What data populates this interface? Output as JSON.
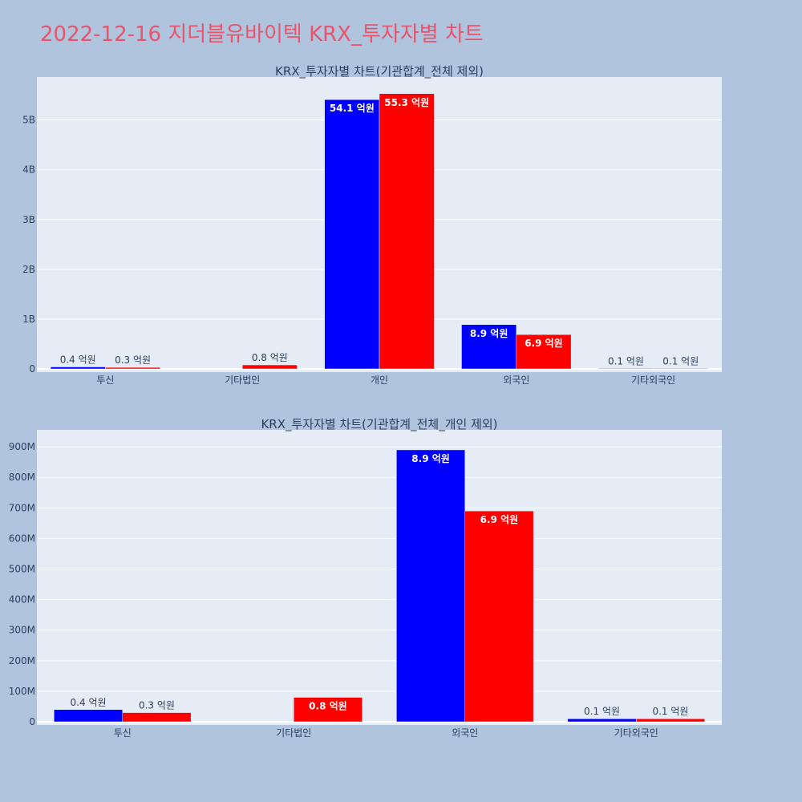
{
  "title": "2022-12-16 지더블유바이텍 KRX_투자자별 차트",
  "colors": {
    "series_a": "#0000ff",
    "series_b": "#ff0000",
    "plot_bg": "#e5ecf6",
    "page_bg": "#b0c4de"
  },
  "chart_data": [
    {
      "type": "bar",
      "title": "KRX_투자자별 차트(기관합계_전체 제외)",
      "categories": [
        "투신",
        "기타법인",
        "개인",
        "외국인",
        "기타외국인"
      ],
      "ylim": [
        0,
        5800000000
      ],
      "yticks": [
        0,
        1000000000,
        2000000000,
        3000000000,
        4000000000,
        5000000000
      ],
      "ytick_labels": [
        "0",
        "1B",
        "2B",
        "3B",
        "4B",
        "5B"
      ],
      "grid": true,
      "series": [
        {
          "color": "#0000ff",
          "values": [
            40000000,
            0,
            5410000000,
            890000000,
            10000000
          ],
          "labels": [
            "0.4 억원",
            "",
            "54.1 억원",
            "8.9 억원",
            "0.1 억원"
          ]
        },
        {
          "color": "#ff0000",
          "values": [
            30000000,
            80000000,
            5530000000,
            690000000,
            10000000
          ],
          "labels": [
            "0.3 억원",
            "0.8 억원",
            "55.3 억원",
            "6.9 억원",
            "0.1 억원"
          ]
        }
      ]
    },
    {
      "type": "bar",
      "title": "KRX_투자자별 차트(기관합계_전체_개인 제외)",
      "categories": [
        "투신",
        "기타법인",
        "외국인",
        "기타외국인"
      ],
      "ylim": [
        0,
        945000000
      ],
      "yticks": [
        0,
        100000000,
        200000000,
        300000000,
        400000000,
        500000000,
        600000000,
        700000000,
        800000000,
        900000000
      ],
      "ytick_labels": [
        "0",
        "100M",
        "200M",
        "300M",
        "400M",
        "500M",
        "600M",
        "700M",
        "800M",
        "900M"
      ],
      "grid": true,
      "series": [
        {
          "color": "#0000ff",
          "values": [
            40000000,
            0,
            890000000,
            10000000
          ],
          "labels": [
            "0.4 억원",
            "",
            "8.9 억원",
            "0.1 억원"
          ]
        },
        {
          "color": "#ff0000",
          "values": [
            30000000,
            80000000,
            690000000,
            10000000
          ],
          "labels": [
            "0.3 억원",
            "0.8 억원",
            "6.9 억원",
            "0.1 억원"
          ]
        }
      ]
    }
  ]
}
